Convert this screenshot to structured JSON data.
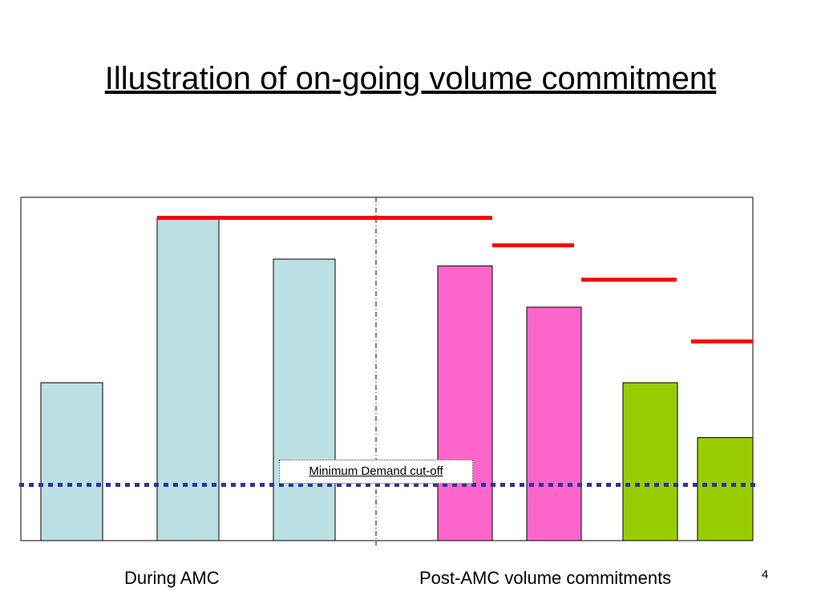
{
  "slide": {
    "title": "Illustration of on-going volume commitment",
    "page_number": "4"
  },
  "chart_data": {
    "type": "bar",
    "title": "",
    "xlabel": "",
    "ylabel": "",
    "ylim": [
      0,
      100
    ],
    "groups": [
      {
        "label": "During AMC",
        "color": "#bbe0e3",
        "values": [
          46,
          94,
          82
        ]
      },
      {
        "label": "Post-AMC volume commitments",
        "color": "#ff66cc",
        "values": [
          80,
          68
        ]
      },
      {
        "label": "",
        "color": "#99cc00",
        "values": [
          46,
          30
        ]
      }
    ],
    "commitment_levels": {
      "color": "#ff0000",
      "values": [
        94,
        86,
        76,
        58
      ]
    },
    "minimum_demand": {
      "label": "Minimum Demand cut-off",
      "value": 16,
      "color": "#333399"
    },
    "period_divider": "dash-dot"
  }
}
